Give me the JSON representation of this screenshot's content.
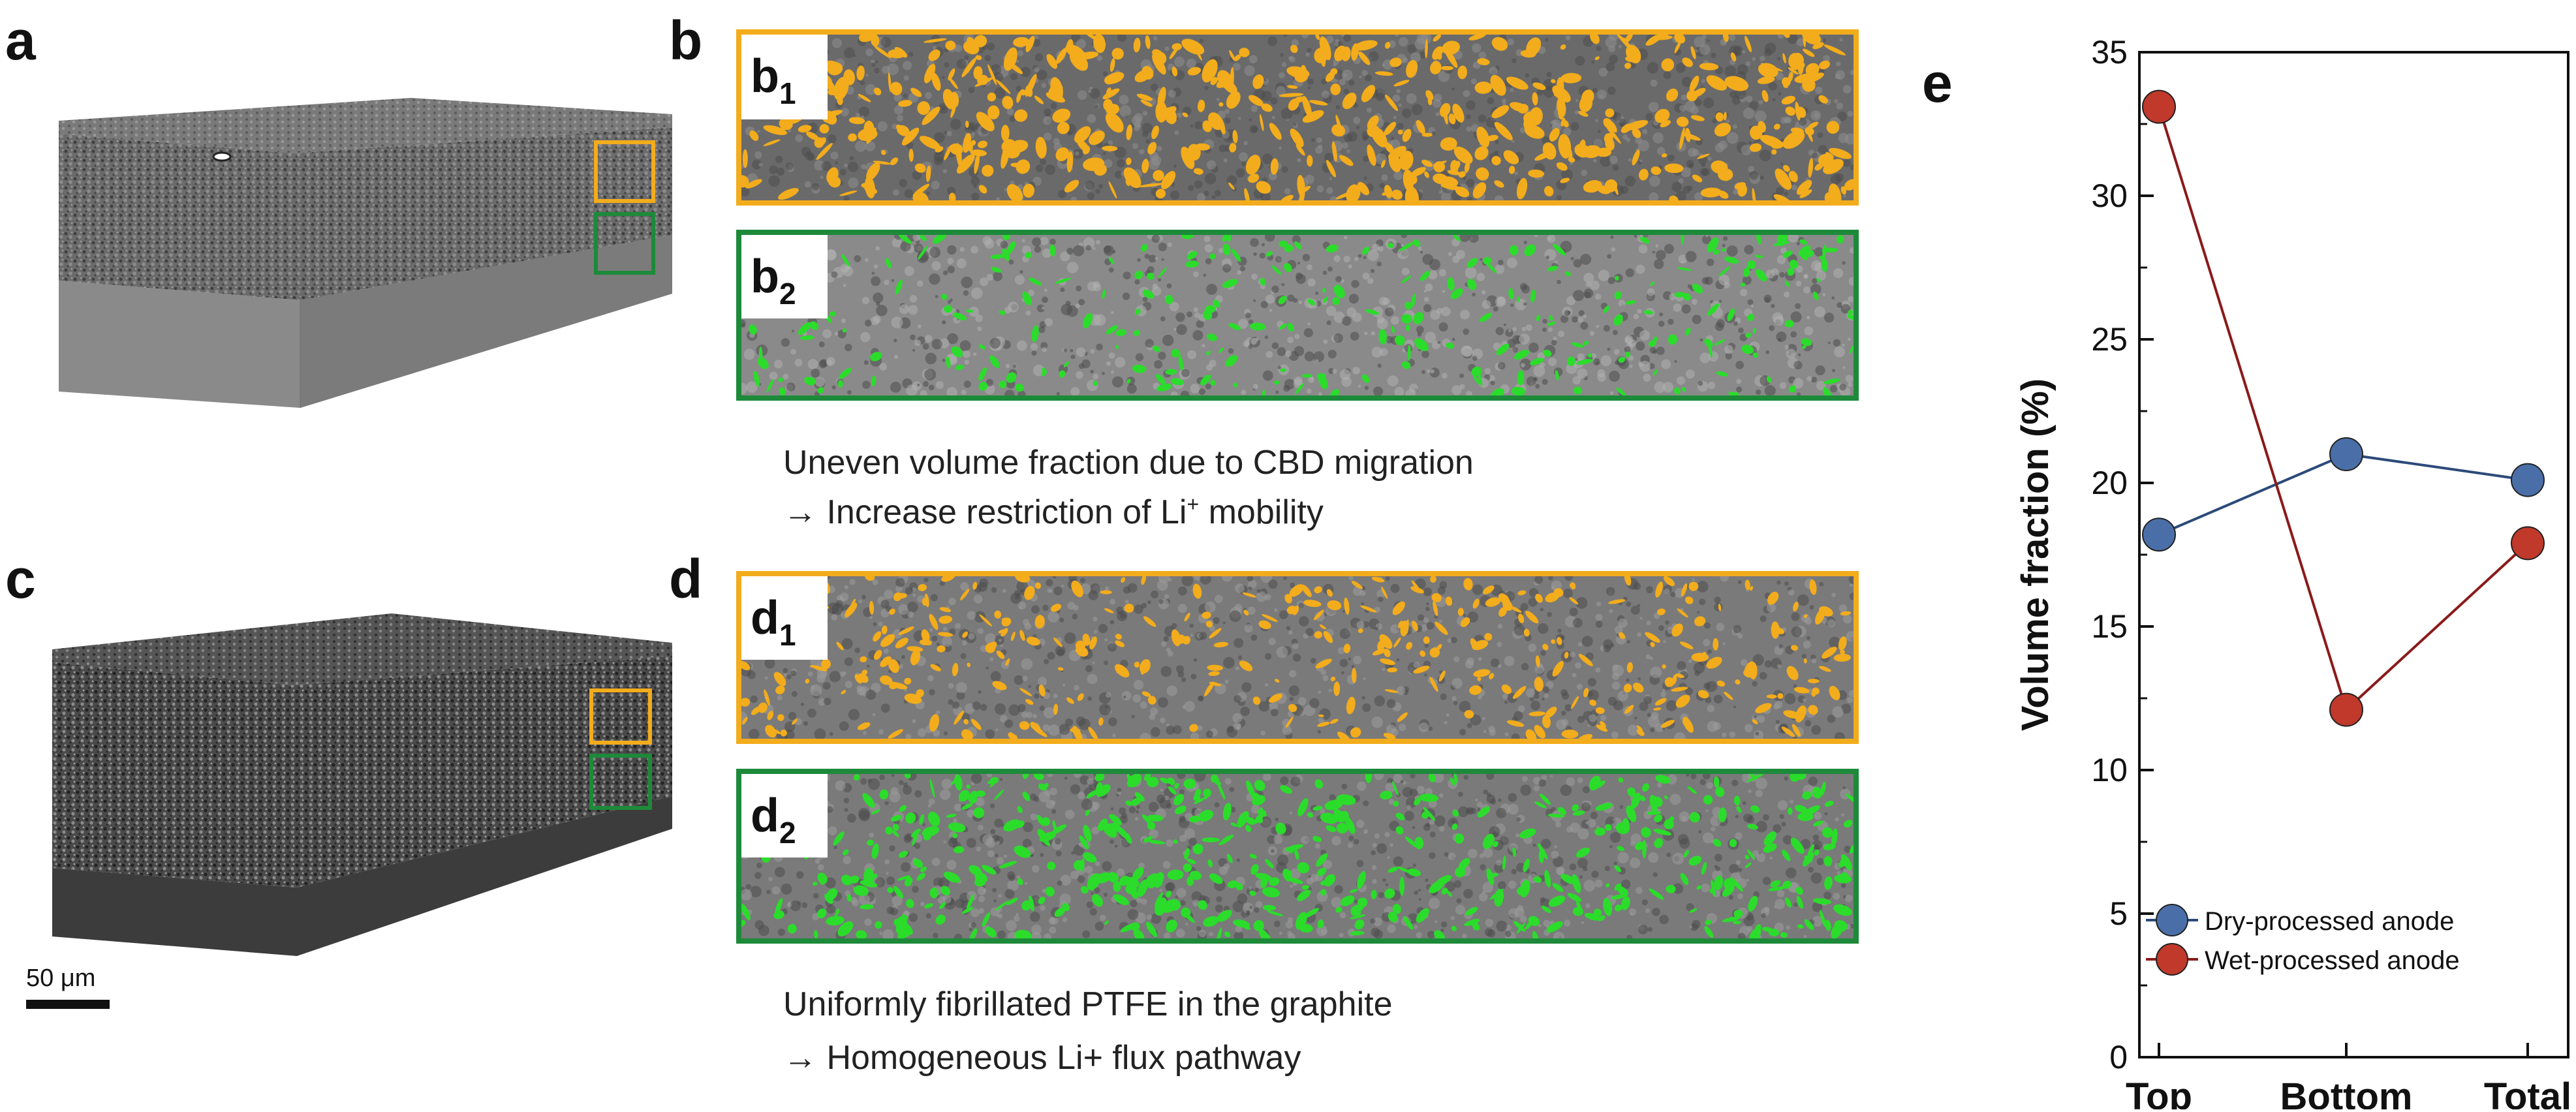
{
  "panels": {
    "a": {
      "letter": "a"
    },
    "b": {
      "letter": "b",
      "strip1_label": "b",
      "strip1_sub": "1",
      "strip2_label": "b",
      "strip2_sub": "2"
    },
    "b_caption": {
      "line1": "Uneven volume fraction due to CBD migration",
      "line2_prefix": "→ Increase restriction of Li",
      "line2_sup": "+",
      "line2_suffix": " mobility"
    },
    "c": {
      "letter": "c",
      "scale_bar": "50 μm"
    },
    "d": {
      "letter": "d",
      "strip1_label": "d",
      "strip1_sub": "1",
      "strip2_label": "d",
      "strip2_sub": "2"
    },
    "d_caption": {
      "line1": "Uniformly fibrillated PTFE in the graphite",
      "line2": "→ Homogeneous Li+ flux pathway"
    },
    "e": {
      "letter": "e"
    }
  },
  "colors": {
    "orange": "#f2ac1c",
    "green": "#2bdc2b",
    "dry": "#4a6fa8",
    "wet": "#c0392b",
    "dry_line": "#2c4a7a",
    "wet_line": "#8b1a1a"
  },
  "chart_data": {
    "type": "line",
    "categories": [
      "Top",
      "Bottom",
      "Total"
    ],
    "ylabel": "Volume fraction (%)",
    "xlabel": "",
    "ylim": [
      0,
      35
    ],
    "yticks": [
      0,
      5,
      10,
      15,
      20,
      25,
      30,
      35
    ],
    "legend_position": "bottom-left",
    "series": [
      {
        "name": "Dry-processed anode",
        "values": [
          18.2,
          21.0,
          20.1
        ],
        "color": "#4a6fa8"
      },
      {
        "name": "Wet-processed anode",
        "values": [
          33.1,
          12.1,
          17.9
        ],
        "color": "#c0392b"
      }
    ]
  }
}
